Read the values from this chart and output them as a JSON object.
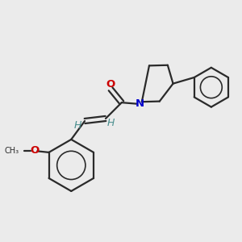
{
  "bg_color": "#ebebeb",
  "bond_color": "#2a2a2a",
  "N_color": "#0000cc",
  "O_color": "#cc0000",
  "H_color": "#4a8f8f",
  "bond_width": 1.6,
  "figsize": [
    3.0,
    3.0
  ],
  "dpi": 100,
  "xlim": [
    0,
    10
  ],
  "ylim": [
    0,
    10
  ]
}
